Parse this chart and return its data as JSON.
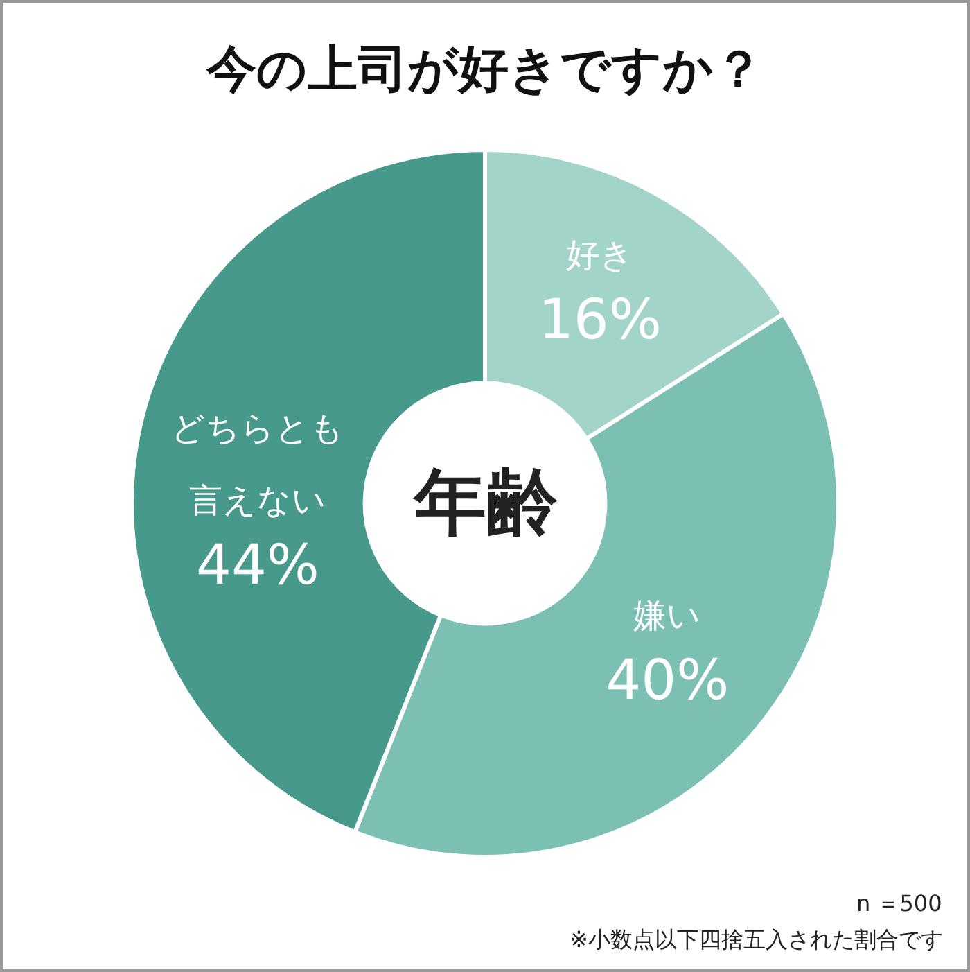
{
  "chart_data": {
    "type": "donut",
    "title": "今の上司が好きですか？",
    "categories": [
      "好き",
      "嫌い",
      "どちらとも言えない"
    ],
    "values": [
      16,
      40,
      44
    ],
    "value_labels": [
      "16%",
      "40%",
      "44%"
    ],
    "colors": [
      "#a3d4ca",
      "#7cc0b4",
      "#47998b"
    ],
    "annotations": [
      "年齢",
      "n ＝500",
      "※小数点以下四捨五入された割合です"
    ],
    "legend": false
  }
}
